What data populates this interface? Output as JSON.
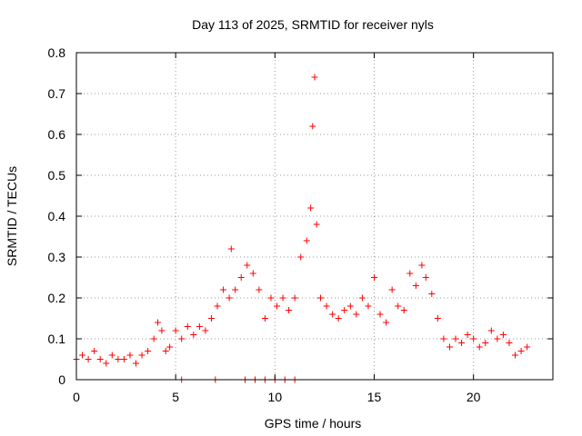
{
  "chart_data": {
    "type": "scatter",
    "title": "Day 113 of 2025, SRMTID for receiver nyls",
    "xlabel": "GPS time / hours",
    "ylabel": "SRMTID / TECUs",
    "xlim": [
      0,
      24
    ],
    "ylim": [
      0,
      0.8
    ],
    "xticks": [
      0,
      5,
      10,
      15,
      20
    ],
    "xtick_labels": [
      "0",
      "5",
      "10",
      "15",
      "20"
    ],
    "yticks": [
      0,
      0.1,
      0.2,
      0.3,
      0.4,
      0.5,
      0.6,
      0.7,
      0.8
    ],
    "ytick_labels": [
      "0",
      "0.1",
      "0.2",
      "0.3",
      "0.4",
      "0.5",
      "0.6",
      "0.7",
      "0.8"
    ],
    "grid": true,
    "marker": "+",
    "color": "#ff0000",
    "series": [
      {
        "name": "SRMTID",
        "x": [
          0.0,
          0.3,
          0.6,
          0.9,
          1.2,
          1.5,
          1.8,
          2.1,
          2.4,
          2.7,
          3.0,
          3.3,
          3.6,
          3.9,
          4.1,
          4.3,
          4.5,
          4.7,
          5.0,
          5.3,
          5.6,
          5.9,
          6.2,
          6.5,
          6.8,
          7.1,
          7.4,
          7.7,
          7.8,
          8.0,
          8.3,
          8.6,
          8.9,
          9.2,
          9.5,
          9.8,
          10.1,
          10.4,
          10.7,
          11.0,
          11.3,
          11.6,
          11.8,
          11.9,
          12.0,
          12.1,
          12.3,
          12.6,
          12.9,
          13.2,
          13.5,
          13.8,
          14.1,
          14.4,
          14.7,
          15.0,
          15.3,
          15.6,
          15.9,
          16.2,
          16.5,
          16.8,
          17.1,
          17.4,
          17.6,
          17.9,
          18.2,
          18.5,
          18.8,
          19.1,
          19.4,
          19.7,
          20.0,
          20.3,
          20.6,
          20.9,
          21.2,
          21.5,
          21.8,
          22.1,
          22.4,
          22.7,
          5.3,
          7.0,
          8.5,
          9.0,
          9.5,
          10.0,
          10.5,
          11.0
        ],
        "y": [
          0.05,
          0.06,
          0.05,
          0.07,
          0.05,
          0.04,
          0.06,
          0.05,
          0.05,
          0.06,
          0.04,
          0.06,
          0.07,
          0.1,
          0.14,
          0.12,
          0.07,
          0.08,
          0.12,
          0.1,
          0.13,
          0.11,
          0.13,
          0.12,
          0.15,
          0.18,
          0.22,
          0.2,
          0.32,
          0.22,
          0.25,
          0.28,
          0.26,
          0.22,
          0.15,
          0.2,
          0.18,
          0.2,
          0.17,
          0.2,
          0.3,
          0.34,
          0.42,
          0.62,
          0.74,
          0.38,
          0.2,
          0.18,
          0.16,
          0.15,
          0.17,
          0.18,
          0.16,
          0.2,
          0.18,
          0.25,
          0.16,
          0.14,
          0.22,
          0.18,
          0.17,
          0.26,
          0.23,
          0.28,
          0.25,
          0.21,
          0.15,
          0.1,
          0.08,
          0.1,
          0.09,
          0.11,
          0.1,
          0.08,
          0.09,
          0.12,
          0.1,
          0.11,
          0.09,
          0.06,
          0.07,
          0.08,
          0.0,
          0.0,
          0.0,
          0.0,
          0.0,
          0.0,
          0.0,
          0.0
        ]
      }
    ]
  }
}
